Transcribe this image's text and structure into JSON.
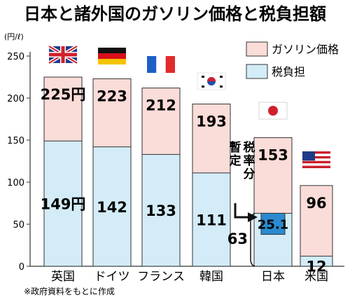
{
  "chart_data": {
    "type": "bar",
    "title": "日本と諸外国のガソリン価格と税負担額",
    "unit": "(円/ℓ)",
    "ylim": [
      0,
      250
    ],
    "yticks": [
      0,
      50,
      100,
      150,
      200,
      250
    ],
    "categories": [
      "英国",
      "ドイツ",
      "フランス",
      "韓国",
      "日本",
      "米国"
    ],
    "series": [
      {
        "name": "ガソリン価格",
        "values": [
          225,
          223,
          212,
          193,
          153,
          96
        ]
      },
      {
        "name": "税負担",
        "values": [
          149,
          142,
          133,
          111,
          63,
          12
        ]
      }
    ],
    "value_labels": {
      "price": [
        "225円",
        "223",
        "212",
        "193",
        "153",
        "96"
      ],
      "tax": [
        "149円",
        "142",
        "133",
        "111",
        "",
        "12"
      ]
    },
    "annotations": {
      "provisional_label": "暫定税率分",
      "provisional_value": "25.1",
      "tax_total": "63",
      "japan_provisional_value": 25.1,
      "japan_tax_total": 63
    },
    "legend_position": "top-right",
    "note": "※政府資料をもとに作成",
    "colors": {
      "price": "#fadcd8",
      "tax": "#d3ecf8",
      "provisional": "#2b8ad0",
      "border": "#333333"
    }
  }
}
